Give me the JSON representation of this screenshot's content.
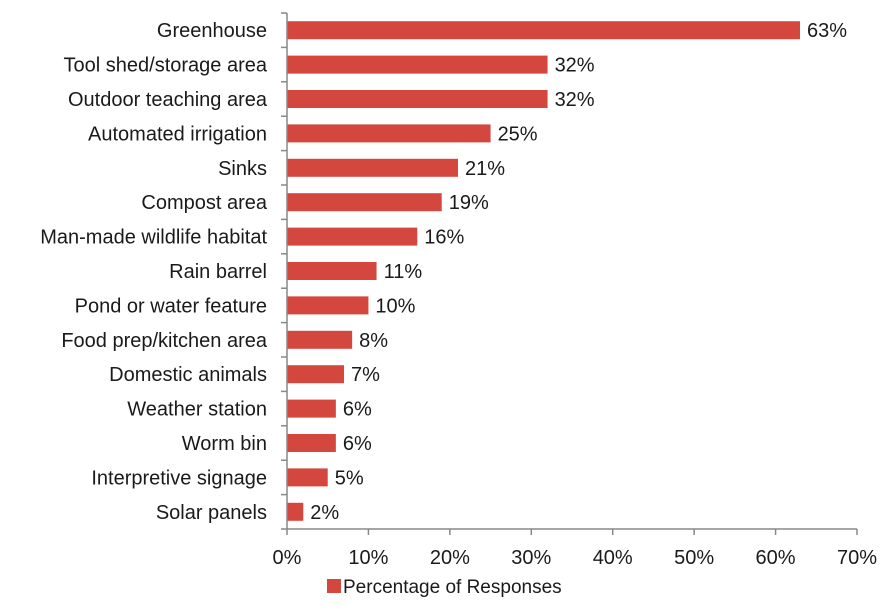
{
  "chart_data": {
    "type": "bar",
    "orientation": "horizontal",
    "categories": [
      "Greenhouse",
      "Tool shed/storage area",
      "Outdoor teaching area",
      "Automated irrigation",
      "Sinks",
      "Compost area",
      "Man-made wildlife habitat",
      "Rain barrel",
      "Pond or water feature",
      "Food prep/kitchen area",
      "Domestic animals",
      "Weather station",
      "Worm bin",
      "Interpretive signage",
      "Solar panels"
    ],
    "series": [
      {
        "name": "Percentage of Responses",
        "values": [
          63,
          32,
          32,
          25,
          21,
          19,
          16,
          11,
          10,
          8,
          7,
          6,
          6,
          5,
          2
        ],
        "labels": [
          "63%",
          "32%",
          "32%",
          "25%",
          "21%",
          "19%",
          "16%",
          "11%",
          "10%",
          "8%",
          "7%",
          "6%",
          "6%",
          "5%",
          "2%"
        ],
        "color": "#d4473f"
      }
    ],
    "xlim": [
      0,
      70
    ],
    "xticks": [
      0,
      10,
      20,
      30,
      40,
      50,
      60,
      70
    ],
    "xtick_labels": [
      "0%",
      "10%",
      "20%",
      "30%",
      "40%",
      "50%",
      "60%",
      "70%"
    ],
    "title": "",
    "xlabel": "",
    "ylabel": "",
    "grid": false,
    "legend_position": "bottom"
  }
}
